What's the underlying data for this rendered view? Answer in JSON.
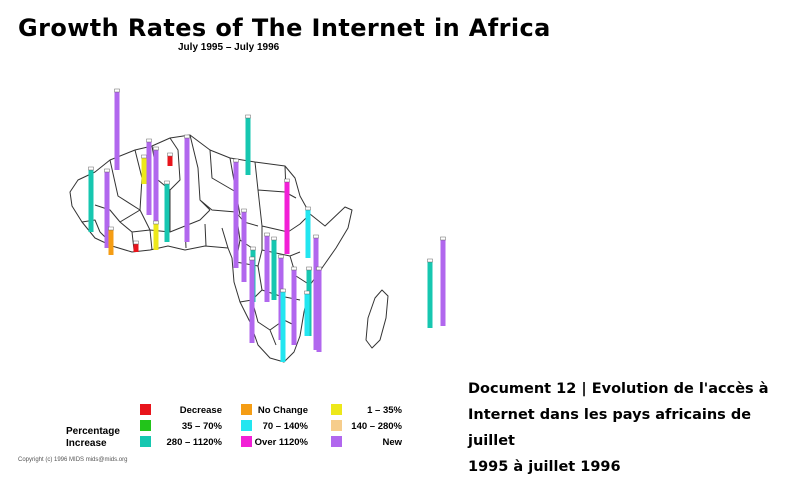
{
  "map": {
    "title": "Growth Rates of The Internet in Africa",
    "subtitle": "July 1995  –  July 1996",
    "colors": {
      "decrease": "#e8141b",
      "c35_70": "#22c41a",
      "c280_1120": "#16c7b0",
      "no_change": "#f59d14",
      "c70_140": "#22e6f0",
      "over_1120": "#f21fd6",
      "c1_35": "#ede81a",
      "c140_280": "#f6cd8c",
      "new": "#b167ee"
    },
    "legend": {
      "group_label_line1": "Percentage",
      "group_label_line2": "Increase",
      "items": [
        {
          "label": "Decrease",
          "color_key": "decrease"
        },
        {
          "label": "35 – 70%",
          "color_key": "c35_70"
        },
        {
          "label": "280 – 1120%",
          "color_key": "c280_1120"
        },
        {
          "label": "No Change",
          "color_key": "no_change"
        },
        {
          "label": "70 – 140%",
          "color_key": "c70_140"
        },
        {
          "label": "Over 1120%",
          "color_key": "over_1120"
        },
        {
          "label": "1 – 35%",
          "color_key": "c1_35"
        },
        {
          "label": "140 – 280%",
          "color_key": "c140_280"
        },
        {
          "label": "New",
          "color_key": "new"
        }
      ]
    },
    "copyright": "Copyright (c) 1996 MIDS  mids@mids.org",
    "country_bars": [
      {
        "category": "new"
      },
      {
        "category": "c280_1120"
      },
      {
        "category": "new"
      },
      {
        "category": "c1_35"
      },
      {
        "category": "new"
      },
      {
        "category": "no_change"
      },
      {
        "category": "decrease"
      },
      {
        "category": "new"
      },
      {
        "category": "c280_1120"
      },
      {
        "category": "c1_35"
      },
      {
        "category": "new"
      },
      {
        "category": "decrease"
      },
      {
        "category": "new"
      },
      {
        "category": "c280_1120"
      },
      {
        "category": "new"
      },
      {
        "category": "c280_1120"
      },
      {
        "category": "new"
      },
      {
        "category": "over_1120"
      },
      {
        "category": "c70_140"
      },
      {
        "category": "c280_1120"
      },
      {
        "category": "new"
      },
      {
        "category": "new"
      },
      {
        "category": "c70_140"
      },
      {
        "category": "new"
      },
      {
        "category": "c280_1120"
      },
      {
        "category": "new"
      },
      {
        "category": "c70_140"
      },
      {
        "category": "new"
      },
      {
        "category": "c280_1120"
      },
      {
        "category": "new"
      }
    ]
  },
  "caption": {
    "line1": "Document 12 | Evolution de l'accès à",
    "line2": "Internet dans les pays africains de juillet",
    "line3": "1995 à juillet 1996"
  }
}
